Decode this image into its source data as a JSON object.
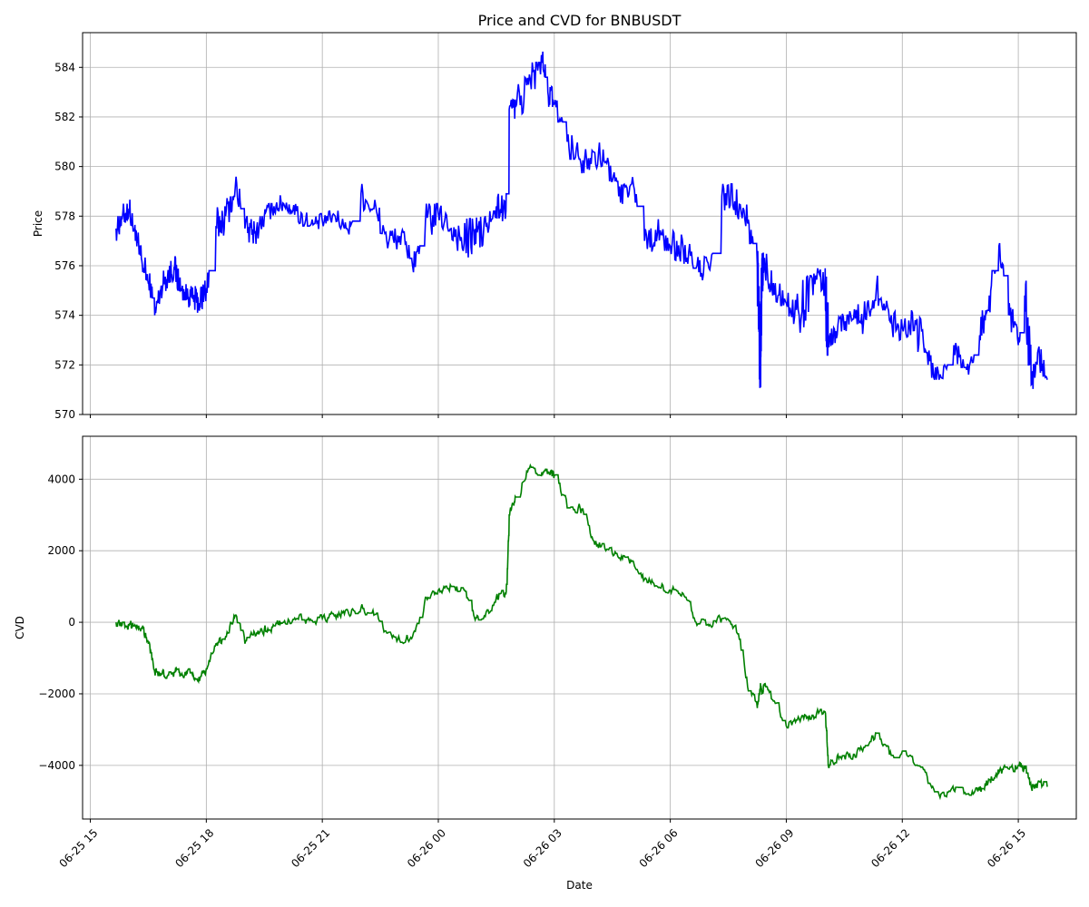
{
  "chart_data": {
    "title": "Price and CVD for BNBUSDT",
    "type": "line",
    "xlabel": "Date",
    "x_range": [
      "2024-06-25T14:48",
      "2024-06-26T16:30"
    ],
    "x_ticks": [
      "06-25 15",
      "06-25 18",
      "06-25 21",
      "06-26 00",
      "06-26 03",
      "06-26 06",
      "06-26 09",
      "06-26 12",
      "06-26 15"
    ],
    "x_tick_times": [
      "2024-06-25T15:00",
      "2024-06-25T18:00",
      "2024-06-25T21:00",
      "2024-06-26T00:00",
      "2024-06-26T03:00",
      "2024-06-26T06:00",
      "2024-06-26T09:00",
      "2024-06-26T12:00",
      "2024-06-26T15:00"
    ],
    "grid": true,
    "panels": [
      {
        "ylabel": "Price",
        "ylim": [
          570,
          585.4
        ],
        "y_ticks": [
          570,
          572,
          574,
          576,
          578,
          580,
          582,
          584
        ],
        "y_tick_labels": [
          "570",
          "572",
          "574",
          "576",
          "578",
          "580",
          "582",
          "584"
        ],
        "color": "#0000ff",
        "series": [
          {
            "x": [
              "2024-06-25T15:40",
              "2024-06-25T15:50",
              "2024-06-25T16:00",
              "2024-06-25T16:10",
              "2024-06-25T16:20",
              "2024-06-25T16:30",
              "2024-06-25T16:40",
              "2024-06-25T16:50",
              "2024-06-25T17:00",
              "2024-06-25T17:10",
              "2024-06-25T17:20",
              "2024-06-25T17:30",
              "2024-06-25T17:40",
              "2024-06-25T17:50",
              "2024-06-25T18:00",
              "2024-06-25T18:15",
              "2024-06-25T18:30",
              "2024-06-25T18:45",
              "2024-06-25T19:00",
              "2024-06-25T19:15",
              "2024-06-25T19:30",
              "2024-06-25T19:45",
              "2024-06-25T20:00",
              "2024-06-25T20:20",
              "2024-06-25T20:40",
              "2024-06-25T21:00",
              "2024-06-25T21:20",
              "2024-06-25T21:40",
              "2024-06-25T22:00",
              "2024-06-25T22:20",
              "2024-06-25T22:40",
              "2024-06-25T23:00",
              "2024-06-25T23:20",
              "2024-06-25T23:40",
              "2024-06-26T00:00",
              "2024-06-26T00:20",
              "2024-06-26T00:40",
              "2024-06-26T00:55",
              "2024-06-26T01:10",
              "2024-06-26T01:30",
              "2024-06-26T01:45",
              "2024-06-26T01:50",
              "2024-06-26T02:00",
              "2024-06-26T02:20",
              "2024-06-26T02:40",
              "2024-06-26T02:50",
              "2024-06-26T03:00",
              "2024-06-26T03:20",
              "2024-06-26T03:40",
              "2024-06-26T04:00",
              "2024-06-26T04:20",
              "2024-06-26T04:40",
              "2024-06-26T05:00",
              "2024-06-26T05:20",
              "2024-06-26T05:40",
              "2024-06-26T06:00",
              "2024-06-26T06:20",
              "2024-06-26T06:40",
              "2024-06-26T07:00",
              "2024-06-26T07:20",
              "2024-06-26T07:40",
              "2024-06-26T08:00",
              "2024-06-26T08:15",
              "2024-06-26T08:20",
              "2024-06-26T08:22",
              "2024-06-26T08:25",
              "2024-06-26T08:40",
              "2024-06-26T09:00",
              "2024-06-26T09:20",
              "2024-06-26T09:40",
              "2024-06-26T10:00",
              "2024-06-26T10:05",
              "2024-06-26T10:20",
              "2024-06-26T10:40",
              "2024-06-26T11:00",
              "2024-06-26T11:20",
              "2024-06-26T11:40",
              "2024-06-26T12:00",
              "2024-06-26T12:20",
              "2024-06-26T12:40",
              "2024-06-26T13:00",
              "2024-06-26T13:20",
              "2024-06-26T13:40",
              "2024-06-26T14:00",
              "2024-06-26T14:15",
              "2024-06-26T14:30",
              "2024-06-26T14:45",
              "2024-06-26T15:00",
              "2024-06-26T15:10",
              "2024-06-26T15:20",
              "2024-06-26T15:30",
              "2024-06-26T15:45"
            ],
            "y": [
              577.5,
              578.0,
              578.3,
              577.0,
              576.2,
              575.3,
              574.0,
              575.2,
              575.6,
              575.9,
              575.0,
              574.8,
              574.7,
              574.5,
              575.1,
              577.6,
              578.0,
              579.2,
              577.5,
              577.3,
              578.0,
              578.4,
              578.5,
              578.2,
              577.6,
              577.8,
              578.0,
              577.4,
              578.9,
              578.3,
              577.0,
              577.2,
              576.0,
              577.8,
              578.1,
              577.5,
              576.9,
              577.4,
              577.3,
              578.4,
              578.2,
              582.3,
              582.4,
              583.3,
              584.5,
              583.0,
              582.5,
              581.0,
              580.3,
              580.6,
              580.2,
              578.8,
              579.3,
              577.0,
              577.3,
              576.8,
              576.7,
              575.9,
              575.9,
              578.8,
              578.6,
              577.7,
              576.0,
              571.2,
              575.5,
              576.0,
              575.3,
              574.5,
              574.0,
              575.5,
              575.2,
              572.8,
              573.6,
              574.0,
              573.8,
              575.2,
              573.8,
              573.5,
              573.8,
              572.0,
              571.5,
              572.8,
              571.8,
              573.2,
              574.8,
              576.8,
              574.0,
              572.8,
              574.8,
              571.2,
              572.5,
              571.4
            ],
            "lo": [
              576.8,
              577.3,
              577.4,
              576.2,
              575.4,
              574.7,
              573.7,
              574.6,
              575.0,
              575.0,
              574.6,
              574.3,
              574.1,
              573.9,
              574.2,
              576.8,
              577.3,
              578.3,
              576.9,
              576.8,
              577.6,
              578.0,
              578.0,
              577.6,
              577.3,
              577.3,
              577.5,
              577.1,
              578.1,
              577.3,
              576.3,
              576.3,
              575.5,
              576.8,
              577.4,
              576.6,
              575.4,
              576.5,
              576.6,
              577.5,
              577.6,
              581.5,
              581.8,
              582.4,
              583.6,
              582.4,
              581.8,
              580.3,
              579.5,
              579.9,
              579.4,
              578.3,
              578.4,
              576.5,
              576.6,
              576.0,
              575.9,
              575.4,
              575.5,
              577.6,
              577.6,
              576.9,
              571.1,
              571.1,
              574.0,
              574.8,
              574.4,
              573.4,
              573.3,
              574.5,
              572.4,
              572.4,
              573.1,
              573.2,
              573.1,
              574.2,
              573.0,
              572.9,
              572.5,
              571.4,
              571.2,
              571.9,
              571.3,
              572.5,
              573.8,
              575.6,
              573.0,
              572.4,
              572.0,
              570.7,
              571.5,
              571.0
            ],
            "hi": [
              578.0,
              578.5,
              578.8,
              577.8,
              576.8,
              576.3,
              575.0,
              575.8,
              576.2,
              576.5,
              575.6,
              575.3,
              575.3,
              575.4,
              575.8,
              578.4,
              578.8,
              580.0,
              578.2,
              578.0,
              578.5,
              578.9,
              578.8,
              578.7,
              578.1,
              578.2,
              578.3,
              577.8,
              579.3,
              578.9,
              577.5,
              577.8,
              576.8,
              578.5,
              578.6,
              578.2,
              577.9,
              578.1,
              578.2,
              579.0,
              578.9,
              582.7,
              583.8,
              584.2,
              584.7,
              583.8,
              583.0,
              581.7,
              581.0,
              581.2,
              580.8,
              579.3,
              579.8,
              577.9,
              578.0,
              577.5,
              577.3,
              576.5,
              576.5,
              579.3,
              579.2,
              578.4,
              576.6,
              576.2,
              576.5,
              576.7,
              576.0,
              575.3,
              575.6,
              576.0,
              575.9,
              573.5,
              574.2,
              574.6,
              574.6,
              575.6,
              574.6,
              574.2,
              574.7,
              572.8,
              572.0,
              573.6,
              572.4,
              574.2,
              575.8,
              577.1,
              574.8,
              573.3,
              575.4,
              572.1,
              572.9,
              572.8
            ]
          }
        ]
      },
      {
        "ylabel": "CVD",
        "ylim": [
          -5500,
          5200
        ],
        "y_ticks": [
          -4000,
          -2000,
          0,
          2000,
          4000
        ],
        "y_tick_labels": [
          "−4000",
          "−2000",
          "0",
          "2000",
          "4000"
        ],
        "color": "#008000",
        "series": [
          {
            "x": [
              "2024-06-25T15:40",
              "2024-06-25T15:50",
              "2024-06-25T16:00",
              "2024-06-25T16:10",
              "2024-06-25T16:20",
              "2024-06-25T16:30",
              "2024-06-25T16:40",
              "2024-06-25T16:50",
              "2024-06-25T17:00",
              "2024-06-25T17:10",
              "2024-06-25T17:20",
              "2024-06-25T17:30",
              "2024-06-25T17:40",
              "2024-06-25T17:50",
              "2024-06-25T18:00",
              "2024-06-25T18:15",
              "2024-06-25T18:30",
              "2024-06-25T18:45",
              "2024-06-25T19:00",
              "2024-06-25T19:15",
              "2024-06-25T19:30",
              "2024-06-25T19:45",
              "2024-06-25T20:00",
              "2024-06-25T20:20",
              "2024-06-25T20:40",
              "2024-06-25T21:00",
              "2024-06-25T21:20",
              "2024-06-25T21:40",
              "2024-06-25T22:00",
              "2024-06-25T22:20",
              "2024-06-25T22:40",
              "2024-06-25T23:00",
              "2024-06-25T23:20",
              "2024-06-25T23:40",
              "2024-06-26T00:00",
              "2024-06-26T00:20",
              "2024-06-26T00:40",
              "2024-06-26T00:55",
              "2024-06-26T01:10",
              "2024-06-26T01:30",
              "2024-06-26T01:45",
              "2024-06-26T01:50",
              "2024-06-26T02:00",
              "2024-06-26T02:20",
              "2024-06-26T02:40",
              "2024-06-26T02:50",
              "2024-06-26T03:00",
              "2024-06-26T03:20",
              "2024-06-26T03:40",
              "2024-06-26T04:00",
              "2024-06-26T04:20",
              "2024-06-26T04:40",
              "2024-06-26T05:00",
              "2024-06-26T05:20",
              "2024-06-26T05:40",
              "2024-06-26T06:00",
              "2024-06-26T06:20",
              "2024-06-26T06:40",
              "2024-06-26T07:00",
              "2024-06-26T07:20",
              "2024-06-26T07:40",
              "2024-06-26T08:00",
              "2024-06-26T08:15",
              "2024-06-26T08:20",
              "2024-06-26T08:22",
              "2024-06-26T08:25",
              "2024-06-26T08:40",
              "2024-06-26T09:00",
              "2024-06-26T09:20",
              "2024-06-26T09:40",
              "2024-06-26T10:00",
              "2024-06-26T10:05",
              "2024-06-26T10:20",
              "2024-06-26T10:40",
              "2024-06-26T11:00",
              "2024-06-26T11:20",
              "2024-06-26T11:40",
              "2024-06-26T12:00",
              "2024-06-26T12:20",
              "2024-06-26T12:40",
              "2024-06-26T13:00",
              "2024-06-26T13:20",
              "2024-06-26T13:40",
              "2024-06-26T14:00",
              "2024-06-26T14:15",
              "2024-06-26T14:30",
              "2024-06-26T14:45",
              "2024-06-26T15:00",
              "2024-06-26T15:10",
              "2024-06-26T15:20",
              "2024-06-26T15:30",
              "2024-06-26T15:45"
            ],
            "y": [
              0,
              0,
              -100,
              -100,
              -150,
              -600,
              -1400,
              -1450,
              -1500,
              -1400,
              -1450,
              -1450,
              -1500,
              -1600,
              -1300,
              -600,
              -400,
              200,
              -600,
              -300,
              -200,
              -100,
              0,
              100,
              50,
              100,
              200,
              300,
              400,
              200,
              -300,
              -500,
              -400,
              700,
              900,
              1000,
              900,
              200,
              100,
              700,
              800,
              3000,
              3500,
              4300,
              4100,
              4200,
              4100,
              3200,
              3200,
              2300,
              2000,
              1800,
              1700,
              1200,
              1000,
              900,
              800,
              0,
              -100,
              100,
              -100,
              -1800,
              -2400,
              -1700,
              -2000,
              -1800,
              -2200,
              -2900,
              -2700,
              -2600,
              -2500,
              -4000,
              -3700,
              -3800,
              -3500,
              -3100,
              -3700,
              -3600,
              -4000,
              -4500,
              -4800,
              -4700,
              -4800,
              -4700,
              -4400,
              -4200,
              -4100,
              -4000,
              -4100,
              -4600,
              -4500,
              -4600
            ]
          }
        ]
      }
    ]
  }
}
